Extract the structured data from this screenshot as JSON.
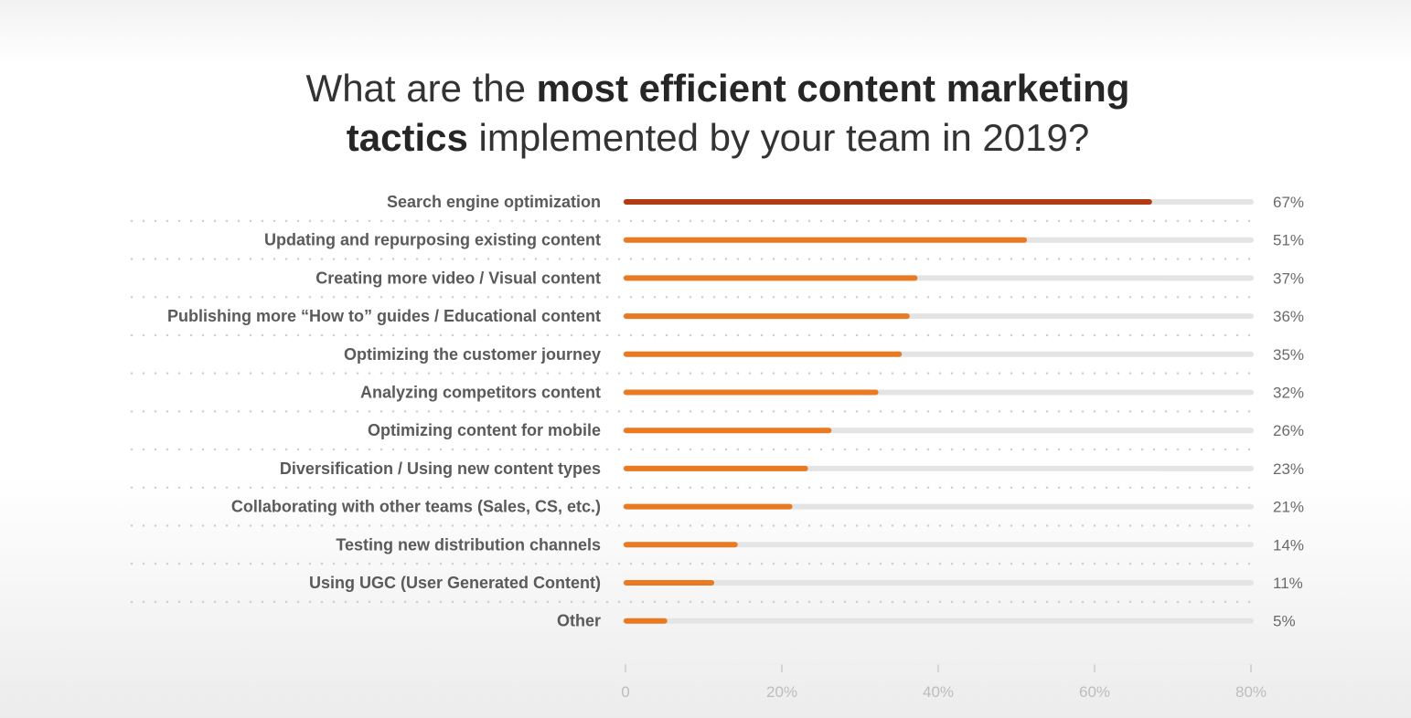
{
  "title": {
    "line1_regular": "What are the ",
    "line1_bold": "most efficient content marketing",
    "line2_bold": "tactics",
    "line2_regular": " implemented by your team in 2019?"
  },
  "colors": {
    "highlight": "#b23b13",
    "bar": "#ea7a22",
    "track": "#e4e4e4",
    "dots": "#cfcfcf",
    "axis": "#cccccc"
  },
  "chart_data": {
    "type": "bar",
    "orientation": "horizontal",
    "categories": [
      "Search engine optimization",
      "Updating and repurposing existing content",
      "Creating more video / Visual content",
      "Publishing more “How to” guides / Educational content",
      "Optimizing the customer journey",
      "Analyzing competitors content",
      "Optimizing content for mobile",
      "Diversification / Using new content types",
      "Collaborating with other teams (Sales, CS, etc.)",
      "Testing new distribution channels",
      "Using UGC (User Generated Content)",
      "Other"
    ],
    "values": [
      67,
      51,
      37,
      36,
      35,
      32,
      26,
      23,
      21,
      14,
      11,
      5
    ],
    "value_labels": [
      "67%",
      "51%",
      "37%",
      "36%",
      "35%",
      "32%",
      "26%",
      "23%",
      "21%",
      "14%",
      "11%",
      "5%"
    ],
    "xlim": [
      0,
      80
    ],
    "xticks": [
      0,
      20,
      40,
      60,
      80
    ],
    "xtick_labels": [
      "0",
      "20%",
      "40%",
      "60%",
      "80%"
    ],
    "grid": false
  }
}
